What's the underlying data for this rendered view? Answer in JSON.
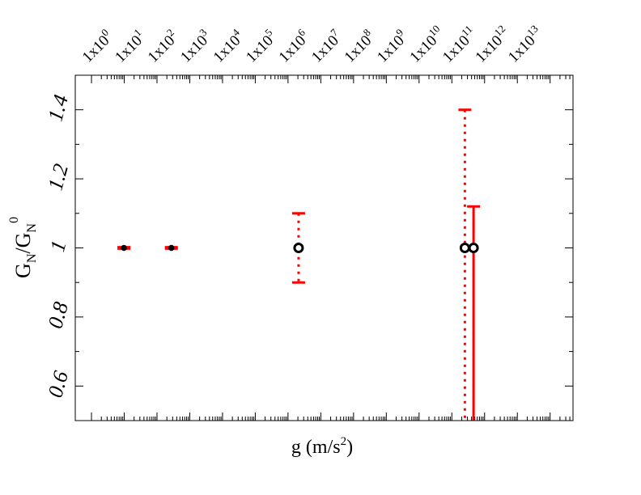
{
  "chart_data": {
    "type": "scatter",
    "x_scale": "log",
    "xlim": [
      0.32,
      500000000000000
    ],
    "ylim": [
      0.5,
      1.5
    ],
    "xlabel": "g (m/s",
    "xlabel_sup": "2",
    "xlabel_tail": ")",
    "ylabel_main": "G",
    "ylabel_sub": "N",
    "ylabel_slash": "/G",
    "ylabel_sub2": "N",
    "ylabel_sup": "0",
    "y_ticks": [
      {
        "value": 0.6,
        "label": "0.6"
      },
      {
        "value": 0.8,
        "label": "0.8"
      },
      {
        "value": 1.0,
        "label": "1"
      },
      {
        "value": 1.2,
        "label": "1.2"
      },
      {
        "value": 1.4,
        "label": "1.4"
      }
    ],
    "x_ticks": [
      {
        "exp": 0,
        "base": "1x10",
        "sup": "0"
      },
      {
        "exp": 1,
        "base": "1x10",
        "sup": "1"
      },
      {
        "exp": 2,
        "base": "1x10",
        "sup": "2"
      },
      {
        "exp": 3,
        "base": "1x10",
        "sup": "3"
      },
      {
        "exp": 4,
        "base": "1x10",
        "sup": "4"
      },
      {
        "exp": 5,
        "base": "1x10",
        "sup": "5"
      },
      {
        "exp": 6,
        "base": "1x10",
        "sup": "6"
      },
      {
        "exp": 7,
        "base": "1x10",
        "sup": "7"
      },
      {
        "exp": 8,
        "base": "1x10",
        "sup": "8"
      },
      {
        "exp": 9,
        "base": "1x10",
        "sup": "9"
      },
      {
        "exp": 10,
        "base": "1x10",
        "sup": "10"
      },
      {
        "exp": 11,
        "base": "1x10",
        "sup": "11"
      },
      {
        "exp": 12,
        "base": "1x10",
        "sup": "12"
      },
      {
        "exp": 13,
        "base": "1x10",
        "sup": "13"
      }
    ],
    "points": [
      {
        "x": 9.8,
        "y": 1.0,
        "err_low": 0.998,
        "err_high": 1.002,
        "err_style": "solid",
        "marker": "small",
        "cap": "plain"
      },
      {
        "x": 274,
        "y": 1.0,
        "err_low": 0.998,
        "err_high": 1.002,
        "err_style": "solid",
        "marker": "small",
        "cap": "plain"
      },
      {
        "x": 2100000,
        "y": 1.0,
        "err_low": 0.9,
        "err_high": 1.1,
        "err_style": "dotted",
        "marker": "open",
        "cap": "plain"
      },
      {
        "x": 250000000000,
        "y": 1.0,
        "err_low": 0.4,
        "err_high": 1.4,
        "err_style": "dotted",
        "marker": "open",
        "cap": "plain"
      },
      {
        "x": 460000000000,
        "y": 1.0,
        "err_low": 0.4,
        "err_high": 1.12,
        "err_style": "solid",
        "marker": "open",
        "cap": "t"
      }
    ],
    "colors": {
      "error_bar": "#ff0000",
      "marker": "#000000",
      "axis": "#000000"
    },
    "grid": false
  }
}
